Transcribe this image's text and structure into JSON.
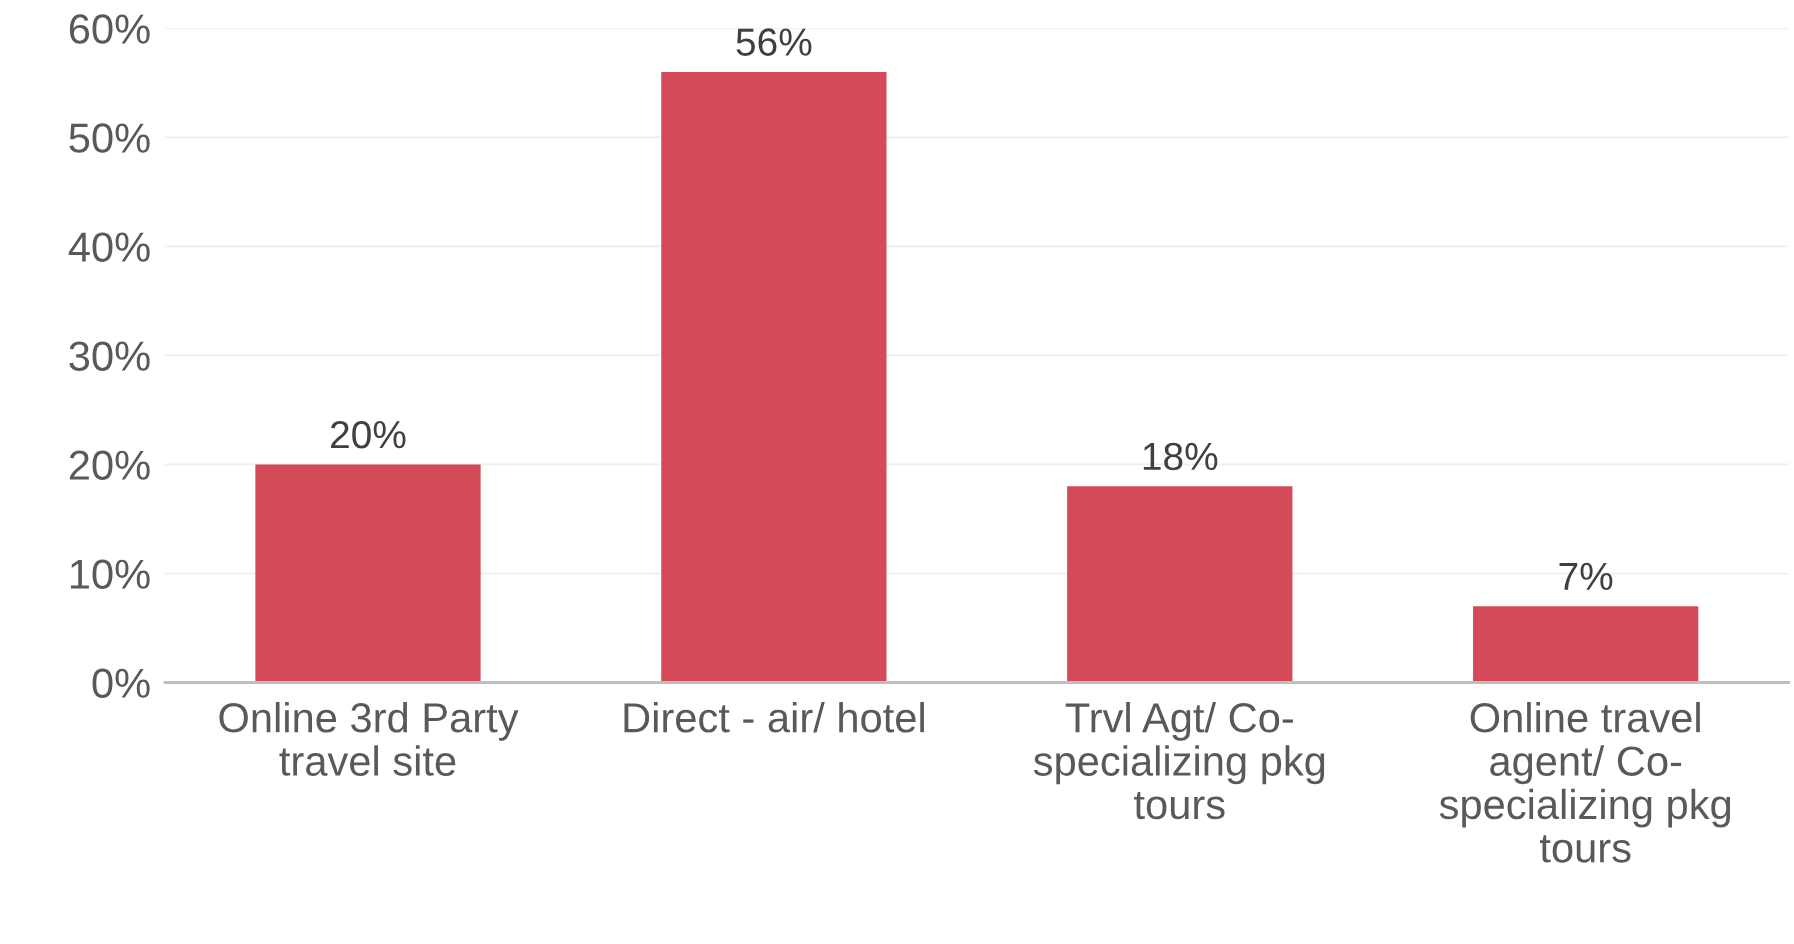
{
  "chart_data": {
    "type": "bar",
    "categories": [
      "Online 3rd Party\ntravel site",
      "Direct - air/ hotel",
      "Trvl Agt/ Co-\nspecializing pkg\ntours",
      "Online travel\nagent/ Co-\nspecializing pkg\ntours"
    ],
    "values": [
      20,
      56,
      18,
      7
    ],
    "value_labels": [
      "20%",
      "56%",
      "18%",
      "7%"
    ],
    "color": "#d44a58",
    "ylim": [
      0,
      60
    ],
    "yticks": [
      {
        "value": 0,
        "label": "0%"
      },
      {
        "value": 10,
        "label": "10%"
      },
      {
        "value": 20,
        "label": "20%"
      },
      {
        "value": 30,
        "label": "30%"
      },
      {
        "value": 40,
        "label": "40%"
      },
      {
        "value": 50,
        "label": "50%"
      },
      {
        "value": 60,
        "label": "60%"
      }
    ],
    "grid": "y",
    "legend": false
  }
}
